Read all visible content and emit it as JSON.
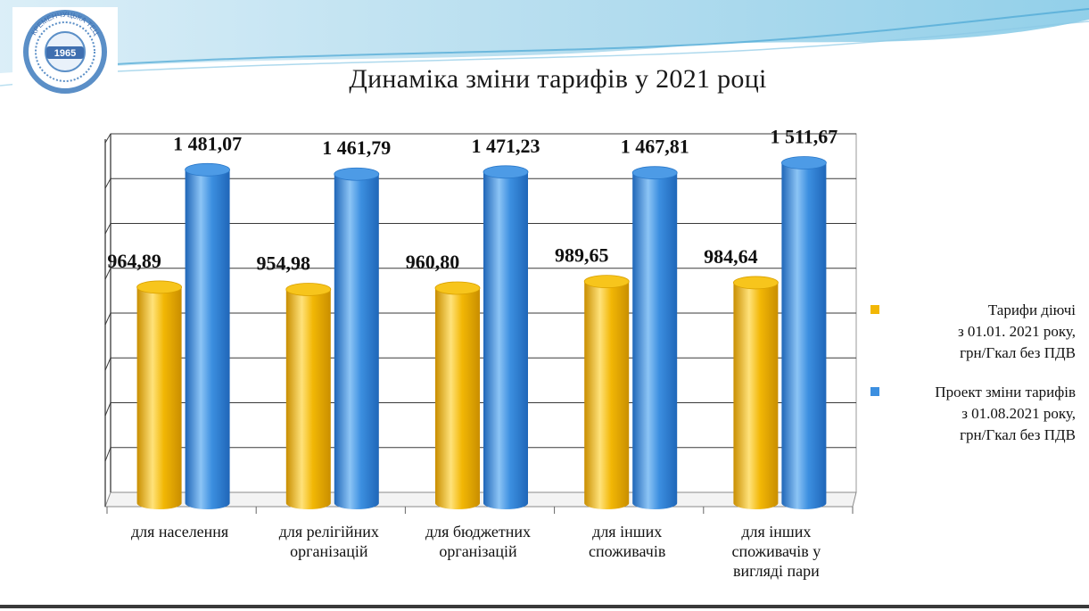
{
  "slide": {
    "logo": {
      "text_top": "КРЕМЕНЧУЦЬКА ТЕЦ",
      "year": "1965"
    }
  },
  "chart_data": {
    "type": "bar",
    "title": "Динаміка зміни тарифів у 2021 році",
    "categories": [
      [
        "для населення"
      ],
      [
        "для релігійних",
        "організацій"
      ],
      [
        "для  бюджетних",
        "організацій"
      ],
      [
        "для інших",
        "споживачів"
      ],
      [
        "для інших",
        "споживачів у",
        "вигляді пари"
      ]
    ],
    "series": [
      {
        "name": "Тарифи діючі з 01.01. 2021 року, грн/Гкал без ПДВ",
        "name_lines": [
          "Тарифи діючі",
          "з 01.01. 2021 року,",
          "грн/Гкал без ПДВ"
        ],
        "color": "#f2b705",
        "values": [
          964.89,
          954.98,
          960.8,
          989.65,
          984.64
        ],
        "labels": [
          "964,89",
          "954,98",
          "960,80",
          "989,65",
          "984,64"
        ]
      },
      {
        "name": "Проект зміни тарифів з 01.08.2021  року, грн/Гкал без ПДВ",
        "name_lines": [
          "Проект зміни тарифів",
          "з 01.08.2021  року,",
          "грн/Гкал без ПДВ"
        ],
        "color": "#3c8fe0",
        "values": [
          1481.07,
          1461.79,
          1471.23,
          1467.81,
          1511.67
        ],
        "labels": [
          "1 481,07",
          "1 461,79",
          "1 471,23",
          "1 467,81",
          "1 511,67"
        ]
      }
    ],
    "ylim": [
      0,
      1600
    ],
    "grid": true,
    "legend": "right",
    "style": "3d-cylinder"
  }
}
